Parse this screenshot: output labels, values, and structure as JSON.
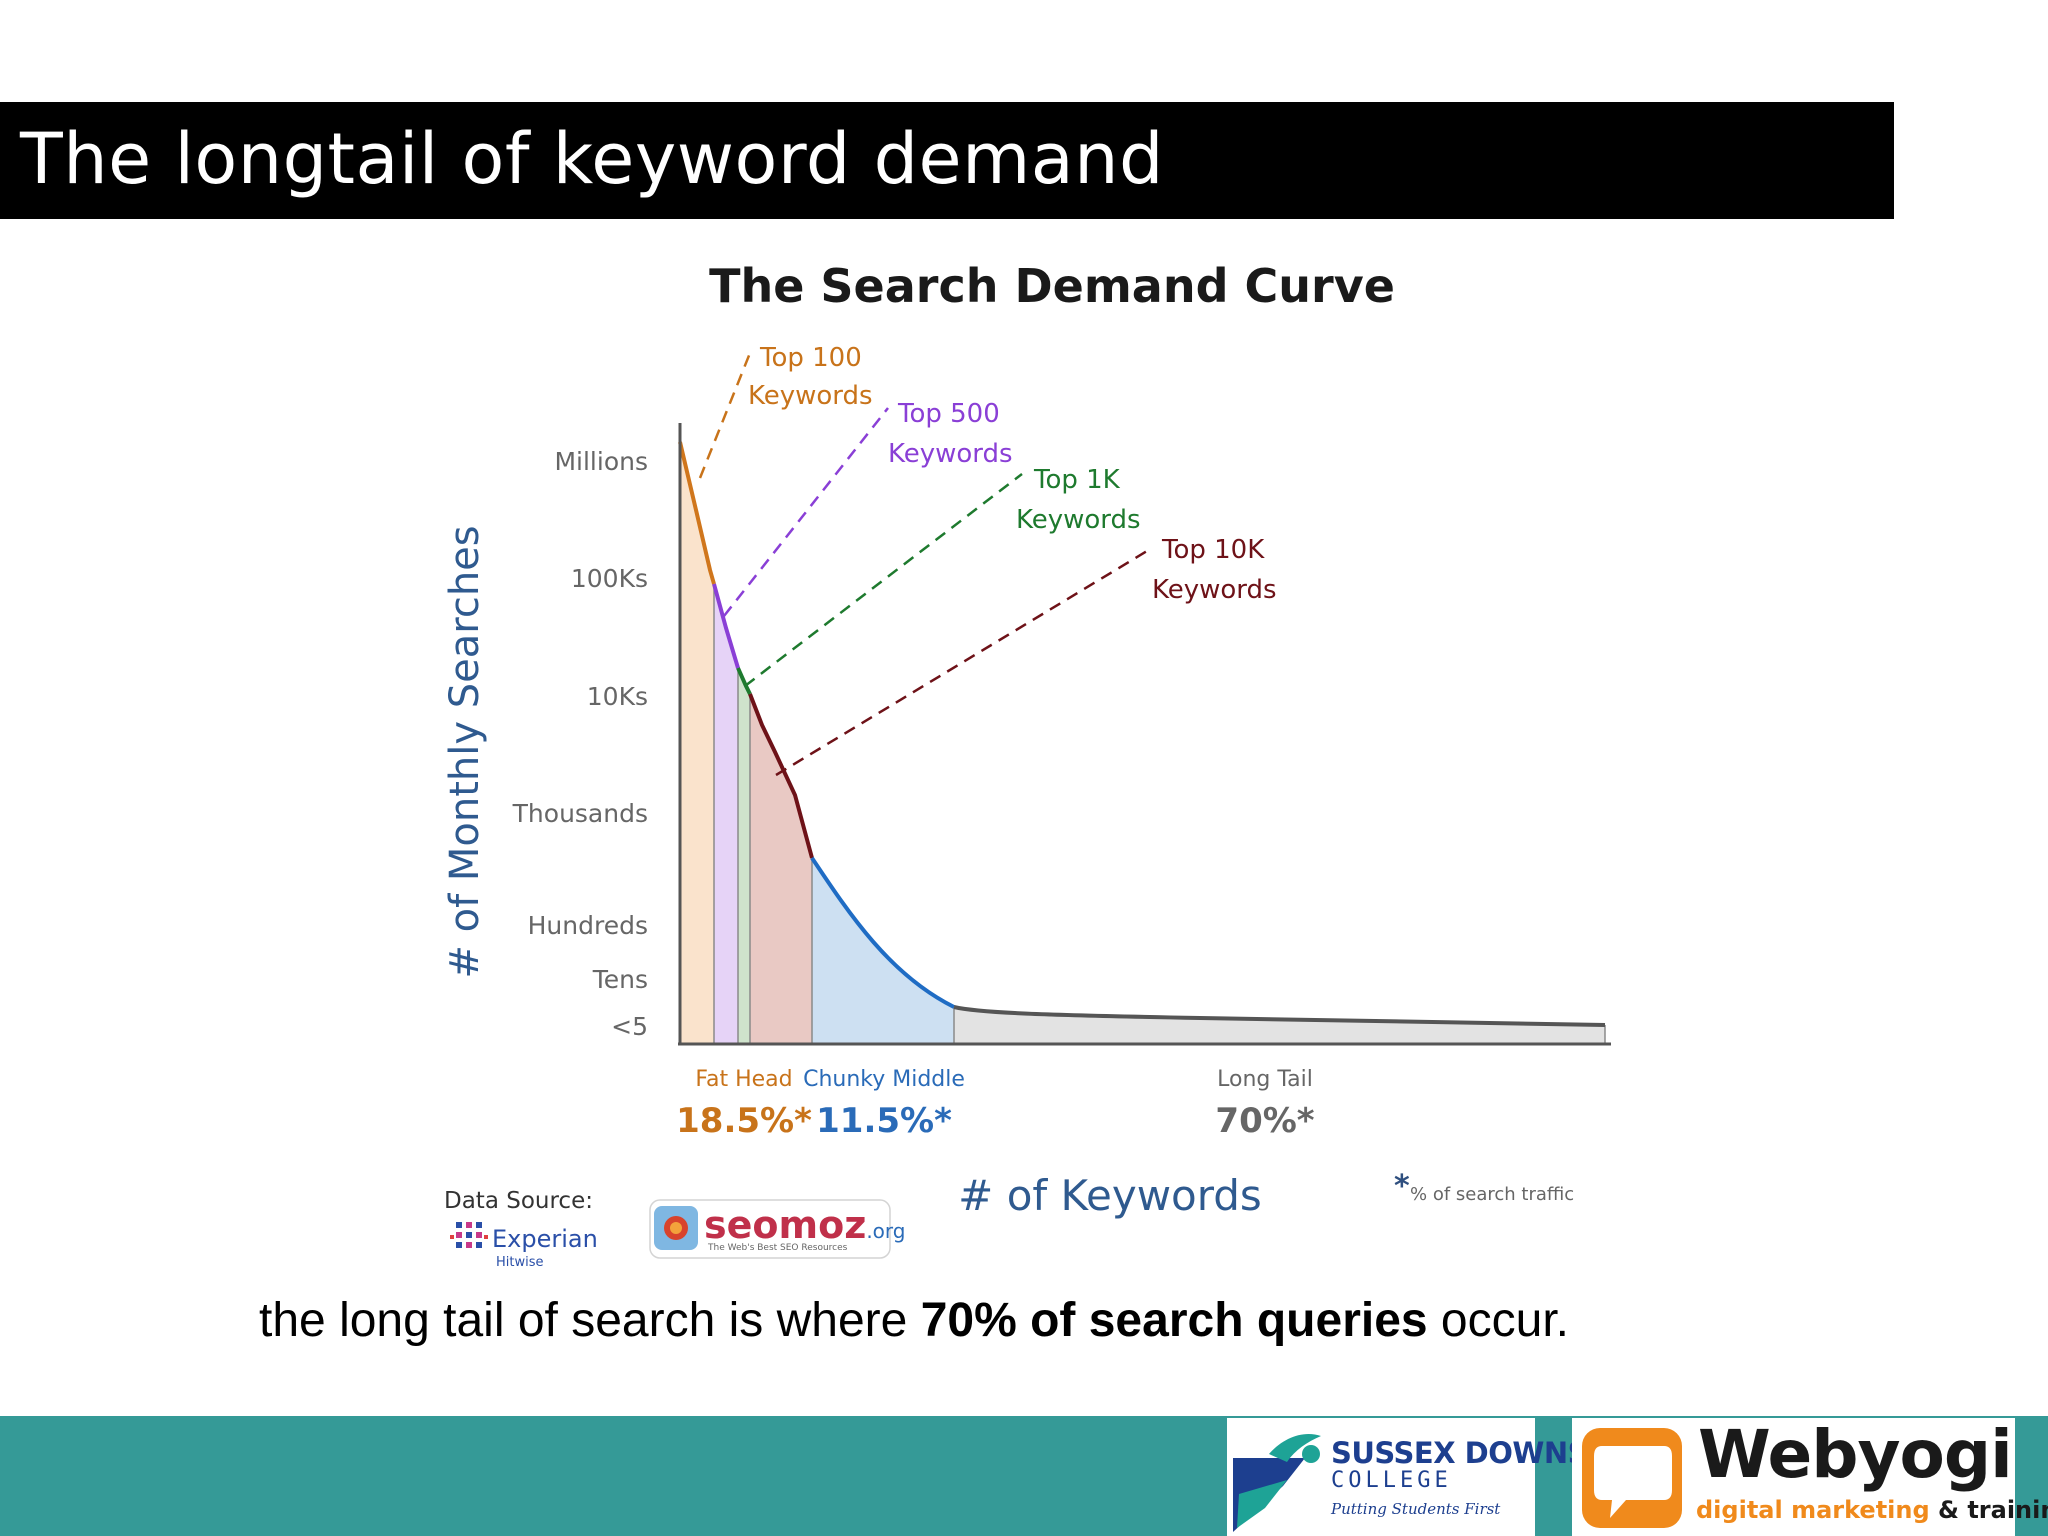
{
  "slide": {
    "title": "The longtail of keyword demand",
    "caption_pre": "the long tail of search is where ",
    "caption_bold": "70% of search queries",
    "caption_post": " occur."
  },
  "chart_data": {
    "type": "area",
    "title": "The Search Demand Curve",
    "xlabel": "# of Keywords",
    "ylabel": "# of Monthly Searches",
    "y_scale": "log",
    "y_ticks": [
      "Millions",
      "100Ks",
      "10Ks",
      "Thousands",
      "Hundreds",
      "Tens",
      "<5"
    ],
    "grid": false,
    "keyword_callouts": [
      {
        "line1": "Top 100",
        "line2": "Keywords",
        "color": "#c8731a"
      },
      {
        "line1": "Top 500",
        "line2": "Keywords",
        "color": "#8a3fd6"
      },
      {
        "line1": "Top 1K",
        "line2": "Keywords",
        "color": "#1e7a2e"
      },
      {
        "line1": "Top 10K",
        "line2": "Keywords",
        "color": "#6e1218"
      }
    ],
    "segments": [
      {
        "label": "Fat Head",
        "share": "18.5%*",
        "color": "#c8731a"
      },
      {
        "label": "Chunky Middle",
        "share": "11.5%*",
        "color": "#2a6bb8"
      },
      {
        "label": "Long Tail",
        "share": "70%*",
        "color": "#555555"
      }
    ],
    "footnote_mark": "*",
    "footnote": "% of search traffic",
    "source_label": "Data Source:",
    "source_experian": "Experian",
    "source_experian_sub": "Hitwise",
    "source_seomoz": "seomoz",
    "source_seomoz_tld": ".org",
    "source_seomoz_tag": "The Web's Best SEO Resources"
  },
  "footer": {
    "sussex_name": "SUSSEX DOWNS",
    "sussex_college": "COLLEGE",
    "sussex_tagline": "Putting Students First",
    "webyogi_name": "Webyogi",
    "webyogi_tag_orange": "digital marketing",
    "webyogi_tag_dark": " & training"
  },
  "colors": {
    "teal_footer": "#359a97",
    "fat_head": "#c8731a",
    "chunky_middle": "#2a6bb8",
    "top500": "#8a3fd6",
    "top1k": "#1e7a2e",
    "top10k": "#6e1218"
  }
}
